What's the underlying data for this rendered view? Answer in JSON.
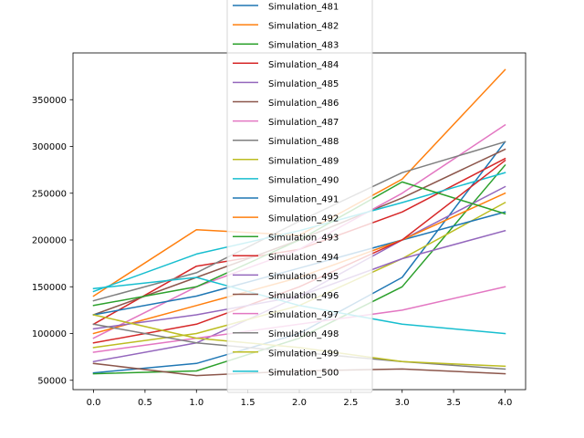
{
  "chart_data": {
    "type": "line",
    "title": "",
    "xlabel": "",
    "ylabel": "",
    "x": [
      0,
      1,
      2,
      3,
      4
    ],
    "xlim": [
      -0.2,
      4.2
    ],
    "ylim": [
      40000,
      400000
    ],
    "x_ticks": [
      "0.0",
      "0.5",
      "1.0",
      "1.5",
      "2.0",
      "2.5",
      "3.0",
      "3.5",
      "4.0"
    ],
    "x_tick_values": [
      0,
      0.5,
      1,
      1.5,
      2,
      2.5,
      3,
      3.5,
      4
    ],
    "y_ticks": [
      "50000",
      "100000",
      "150000",
      "200000",
      "250000",
      "300000",
      "350000"
    ],
    "y_tick_values": [
      50000,
      100000,
      150000,
      200000,
      250000,
      300000,
      350000
    ],
    "grid": false,
    "legend_placement": "top-center",
    "series": [
      {
        "name": "Simulation_481",
        "color": "#1f77b4",
        "values": [
          58000,
          68000,
          100000,
          160000,
          305000
        ]
      },
      {
        "name": "Simulation_482",
        "color": "#ff7f0e",
        "values": [
          140000,
          211000,
          205000,
          265000,
          382000
        ]
      },
      {
        "name": "Simulation_483",
        "color": "#2ca02c",
        "values": [
          57000,
          60000,
          95000,
          150000,
          280000
        ]
      },
      {
        "name": "Simulation_484",
        "color": "#d62728",
        "values": [
          110000,
          172000,
          190000,
          230000,
          287000
        ]
      },
      {
        "name": "Simulation_485",
        "color": "#9467bd",
        "values": [
          70000,
          90000,
          140000,
          200000,
          257000
        ]
      },
      {
        "name": "Simulation_486",
        "color": "#8c564b",
        "values": [
          120000,
          160000,
          200000,
          245000,
          297000
        ]
      },
      {
        "name": "Simulation_487",
        "color": "#e377c2",
        "values": [
          95000,
          150000,
          190000,
          250000,
          323000
        ]
      },
      {
        "name": "Simulation_488",
        "color": "#7f7f7f",
        "values": [
          135000,
          165000,
          220000,
          272000,
          305000
        ]
      },
      {
        "name": "Simulation_489",
        "color": "#bcbd22",
        "values": [
          85000,
          100000,
          130000,
          180000,
          240000
        ]
      },
      {
        "name": "Simulation_490",
        "color": "#17becf",
        "values": [
          145000,
          185000,
          210000,
          240000,
          272000
        ]
      },
      {
        "name": "Simulation_491",
        "color": "#1f77b4",
        "values": [
          120000,
          140000,
          170000,
          200000,
          230000
        ]
      },
      {
        "name": "Simulation_492",
        "color": "#ff7f0e",
        "values": [
          100000,
          130000,
          160000,
          200000,
          250000
        ]
      },
      {
        "name": "Simulation_493",
        "color": "#2ca02c",
        "values": [
          130000,
          150000,
          200000,
          262000,
          228000
        ]
      },
      {
        "name": "Simulation_494",
        "color": "#d62728",
        "values": [
          90000,
          110000,
          150000,
          200000,
          285000
        ]
      },
      {
        "name": "Simulation_495",
        "color": "#9467bd",
        "values": [
          105000,
          120000,
          140000,
          180000,
          210000
        ]
      },
      {
        "name": "Simulation_496",
        "color": "#8c564b",
        "values": [
          68000,
          55000,
          60000,
          62000,
          57000
        ]
      },
      {
        "name": "Simulation_497",
        "color": "#e377c2",
        "values": [
          80000,
          95000,
          110000,
          125000,
          150000
        ]
      },
      {
        "name": "Simulation_498",
        "color": "#7f7f7f",
        "values": [
          110000,
          90000,
          80000,
          70000,
          62000
        ]
      },
      {
        "name": "Simulation_499",
        "color": "#bcbd22",
        "values": [
          120000,
          95000,
          85000,
          70000,
          65000
        ]
      },
      {
        "name": "Simulation_500",
        "color": "#17becf",
        "values": [
          148000,
          160000,
          130000,
          110000,
          100000
        ]
      }
    ]
  },
  "palette": [
    "#1f77b4",
    "#ff7f0e",
    "#2ca02c",
    "#d62728",
    "#9467bd",
    "#8c564b",
    "#e377c2",
    "#7f7f7f",
    "#bcbd22",
    "#17becf"
  ]
}
